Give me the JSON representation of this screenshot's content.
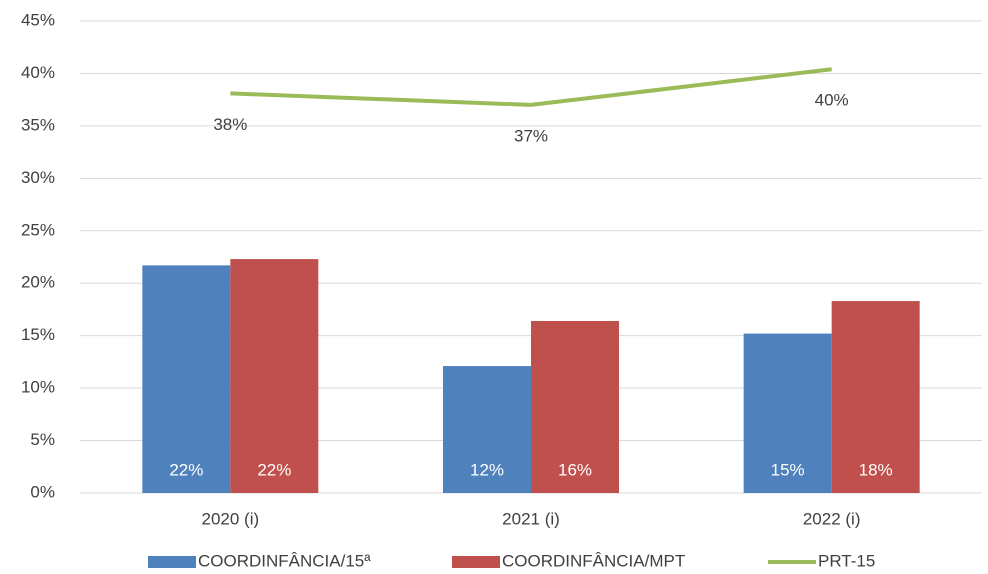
{
  "chart_data": {
    "type": "bar",
    "categories": [
      "2020 (i)",
      "2021 (i)",
      "2022 (i)"
    ],
    "series": [
      {
        "name": "COORDINFÂNCIA/15ª",
        "type": "bar",
        "color": "#4f81bd",
        "values": [
          21.7,
          12.1,
          15.2
        ],
        "value_labels": [
          "22%",
          "12%",
          "15%"
        ]
      },
      {
        "name": "COORDINFÂNCIA/MPT",
        "type": "bar",
        "color": "#c0504d",
        "values": [
          22.3,
          16.4,
          18.3
        ],
        "value_labels": [
          "22%",
          "16%",
          "18%"
        ]
      },
      {
        "name": "PRT-15",
        "type": "line",
        "color": "#9bbb59",
        "values": [
          38.1,
          37.0,
          40.4
        ],
        "value_labels": [
          "38%",
          "37%",
          "40%"
        ]
      }
    ],
    "ylim": [
      0,
      45
    ],
    "yticks": [
      {
        "value": 0,
        "label": "0%"
      },
      {
        "value": 5,
        "label": "5%"
      },
      {
        "value": 10,
        "label": "10%"
      },
      {
        "value": 15,
        "label": "15%"
      },
      {
        "value": 20,
        "label": "20%"
      },
      {
        "value": 25,
        "label": "25%"
      },
      {
        "value": 30,
        "label": "30%"
      },
      {
        "value": 35,
        "label": "35%"
      },
      {
        "value": 40,
        "label": "40%"
      },
      {
        "value": 45,
        "label": "45%"
      }
    ],
    "grid": true,
    "legend": "bottom"
  }
}
